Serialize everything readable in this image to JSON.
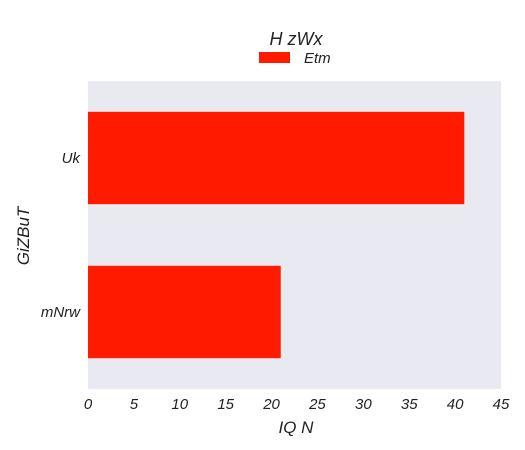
{
  "chart_data": {
    "type": "bar",
    "orientation": "horizontal",
    "title": "H  zWx",
    "xlabel": "IQ N",
    "ylabel": "GiZBuT",
    "categories": [
      "Uk",
      "mNrw"
    ],
    "series": [
      {
        "name": "Etm",
        "values": [
          41,
          21
        ],
        "color": "#ff1a00"
      }
    ],
    "xlim": [
      0,
      45
    ],
    "xticks": [
      0,
      5,
      10,
      15,
      20,
      25,
      30,
      35,
      40,
      45
    ],
    "grid": false,
    "legend": "top-center",
    "plot_background": "#e9e9f2"
  }
}
